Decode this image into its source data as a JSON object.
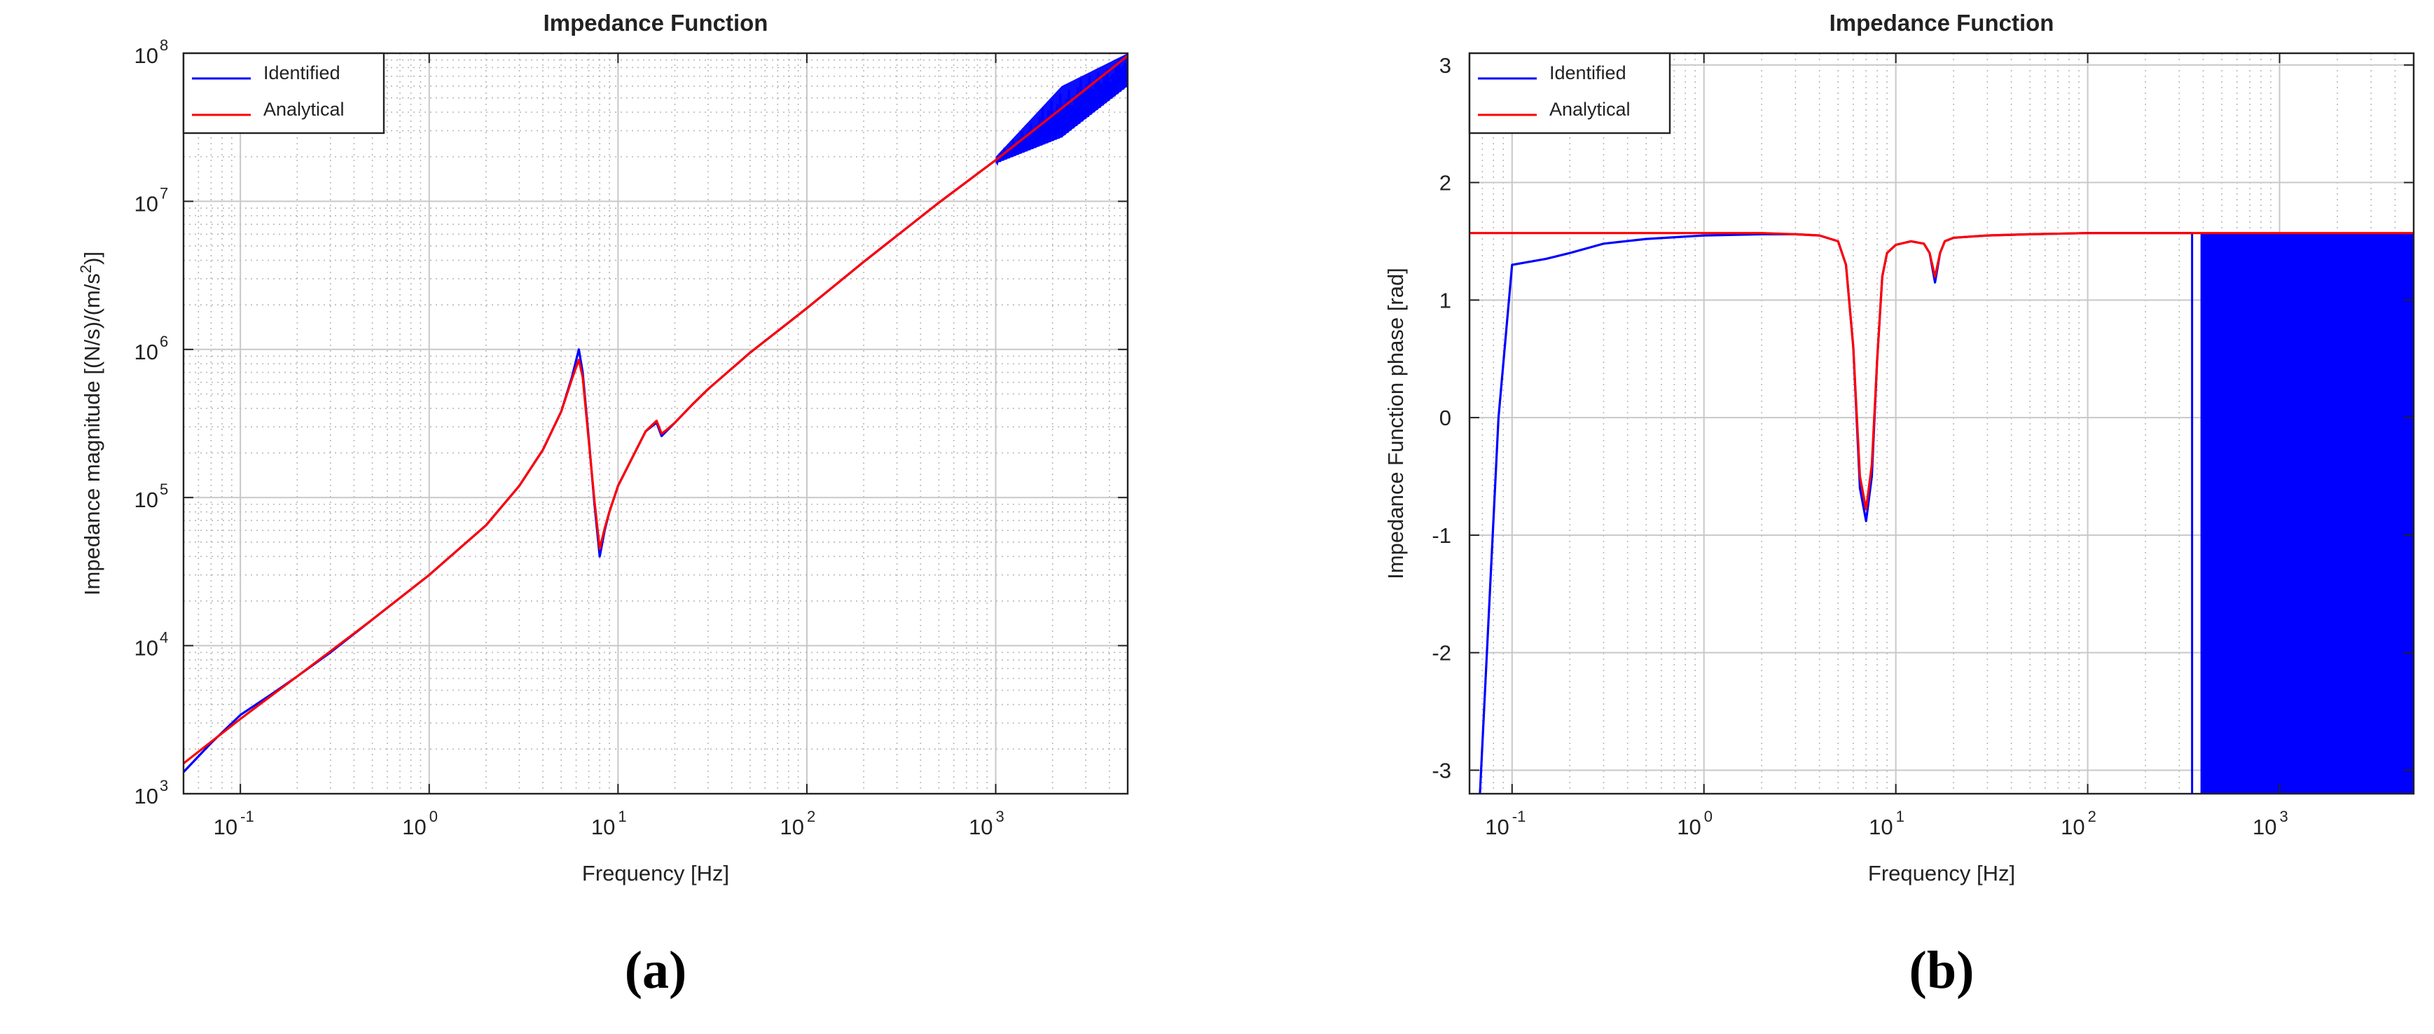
{
  "chart_data": [
    {
      "type": "line",
      "panel_label": "(a)",
      "title": "Impedance Function",
      "xlabel": "Frequency [Hz]",
      "ylabel_main": "Impedance magnitude [(N/s)/(m/s",
      "ylabel_sup": "2",
      "ylabel_end": ")]",
      "xscale": "log",
      "yscale": "log",
      "xlim": [
        0.05,
        5000
      ],
      "ylim": [
        1000,
        100000000
      ],
      "grid": true,
      "legend_position": "top-left",
      "x_ticks": [
        {
          "base": "10",
          "exp": "-1",
          "value": 0.1
        },
        {
          "base": "10",
          "exp": "0",
          "value": 1
        },
        {
          "base": "10",
          "exp": "1",
          "value": 10
        },
        {
          "base": "10",
          "exp": "2",
          "value": 100
        },
        {
          "base": "10",
          "exp": "3",
          "value": 1000
        }
      ],
      "y_ticks": [
        {
          "base": "10",
          "exp": "3",
          "value": 1000
        },
        {
          "base": "10",
          "exp": "4",
          "value": 10000
        },
        {
          "base": "10",
          "exp": "5",
          "value": 100000
        },
        {
          "base": "10",
          "exp": "6",
          "value": 1000000
        },
        {
          "base": "10",
          "exp": "7",
          "value": 10000000
        },
        {
          "base": "10",
          "exp": "8",
          "value": 100000000
        }
      ],
      "series": [
        {
          "name": "Identified",
          "color": "#0000ff",
          "x": [
            0.05,
            0.07,
            0.1,
            0.15,
            0.2,
            0.3,
            0.5,
            1,
            2,
            3,
            4,
            5,
            5.7,
            6.2,
            6.5,
            7,
            7.5,
            8,
            8.5,
            9,
            10,
            12,
            14,
            15,
            16,
            17,
            18,
            20,
            25,
            30,
            50,
            100,
            200,
            500,
            1000,
            1500,
            2000,
            3000,
            5000
          ],
          "y": [
            1400,
            2200,
            3400,
            4800,
            6200,
            9000,
            15000,
            30000,
            65000,
            120000,
            210000,
            380000,
            650000,
            1000000,
            700000,
            250000,
            90000,
            40000,
            60000,
            80000,
            120000,
            190000,
            280000,
            300000,
            320000,
            260000,
            280000,
            320000,
            430000,
            540000,
            950000,
            1900000,
            3900000,
            9800000,
            19000000,
            26000000,
            35000000,
            50000000,
            85000000
          ],
          "noise_band": {
            "x_from": 1000,
            "x_to": 5000,
            "y_upper": [
              20000000,
              60000000,
              100000000
            ],
            "y_lower": [
              18000000,
              27000000,
              60000000
            ]
          }
        },
        {
          "name": "Analytical",
          "color": "#ff0000",
          "x": [
            0.05,
            0.1,
            0.2,
            0.5,
            1,
            2,
            3,
            4,
            5,
            5.7,
            6.2,
            6.5,
            7,
            7.5,
            8,
            8.5,
            9,
            10,
            12,
            14,
            15,
            16,
            17,
            18,
            20,
            25,
            30,
            50,
            100,
            200,
            500,
            1000,
            2000,
            5000
          ],
          "y": [
            1600,
            3200,
            6200,
            15000,
            30000,
            65000,
            120000,
            210000,
            380000,
            630000,
            850000,
            650000,
            240000,
            95000,
            45000,
            62000,
            80000,
            120000,
            190000,
            280000,
            305000,
            330000,
            270000,
            285000,
            320000,
            430000,
            540000,
            950000,
            1900000,
            3900000,
            9800000,
            19000000,
            38000000,
            96000000
          ]
        }
      ]
    },
    {
      "type": "line",
      "panel_label": "(b)",
      "title": "Impedance Function",
      "xlabel": "Frequency [Hz]",
      "ylabel": "Impedance Function phase [rad]",
      "xscale": "log",
      "yscale": "linear",
      "xlim": [
        0.06,
        5000
      ],
      "ylim": [
        -3.2,
        3.1
      ],
      "grid": true,
      "legend_position": "top-left",
      "x_ticks": [
        {
          "base": "10",
          "exp": "-1",
          "value": 0.1
        },
        {
          "base": "10",
          "exp": "0",
          "value": 1
        },
        {
          "base": "10",
          "exp": "1",
          "value": 10
        },
        {
          "base": "10",
          "exp": "2",
          "value": 100
        },
        {
          "base": "10",
          "exp": "3",
          "value": 1000
        }
      ],
      "y_ticks": [
        {
          "label": "3",
          "value": 3
        },
        {
          "label": "2",
          "value": 2
        },
        {
          "label": "1",
          "value": 1
        },
        {
          "label": "0",
          "value": 0
        },
        {
          "label": "-1",
          "value": -1
        },
        {
          "label": "-2",
          "value": -2
        },
        {
          "label": "-3",
          "value": -3
        }
      ],
      "series": [
        {
          "name": "Identified",
          "color": "#0000ff",
          "x": [
            0.068,
            0.075,
            0.085,
            0.1,
            0.15,
            0.2,
            0.3,
            0.5,
            1,
            2,
            3,
            4,
            5,
            5.5,
            6,
            6.5,
            7,
            7.5,
            8,
            8.5,
            9,
            10,
            12,
            14,
            15,
            16,
            17,
            18,
            20,
            30,
            50,
            100,
            200,
            350
          ],
          "y": [
            -3.2,
            -1.8,
            0.0,
            1.3,
            1.35,
            1.4,
            1.48,
            1.52,
            1.55,
            1.56,
            1.56,
            1.55,
            1.5,
            1.3,
            0.6,
            -0.6,
            -0.88,
            -0.5,
            0.5,
            1.2,
            1.4,
            1.47,
            1.5,
            1.48,
            1.4,
            1.15,
            1.4,
            1.5,
            1.53,
            1.55,
            1.56,
            1.57,
            1.57,
            1.57
          ],
          "noise_band": {
            "x_from": 350,
            "x_to": 5000,
            "y_upper": 1.57,
            "y_lower": -3.2
          }
        },
        {
          "name": "Analytical",
          "color": "#ff0000",
          "x": [
            0.06,
            1,
            2,
            3,
            4,
            5,
            5.5,
            6,
            6.5,
            7,
            7.5,
            8,
            8.5,
            9,
            10,
            12,
            14,
            15,
            16,
            17,
            18,
            20,
            30,
            50,
            100,
            200,
            500,
            1000,
            5000
          ],
          "y": [
            1.57,
            1.57,
            1.57,
            1.56,
            1.55,
            1.5,
            1.3,
            0.6,
            -0.5,
            -0.78,
            -0.4,
            0.5,
            1.2,
            1.4,
            1.47,
            1.5,
            1.48,
            1.4,
            1.2,
            1.4,
            1.5,
            1.53,
            1.55,
            1.56,
            1.57,
            1.57,
            1.57,
            1.57,
            1.57
          ]
        }
      ]
    }
  ]
}
